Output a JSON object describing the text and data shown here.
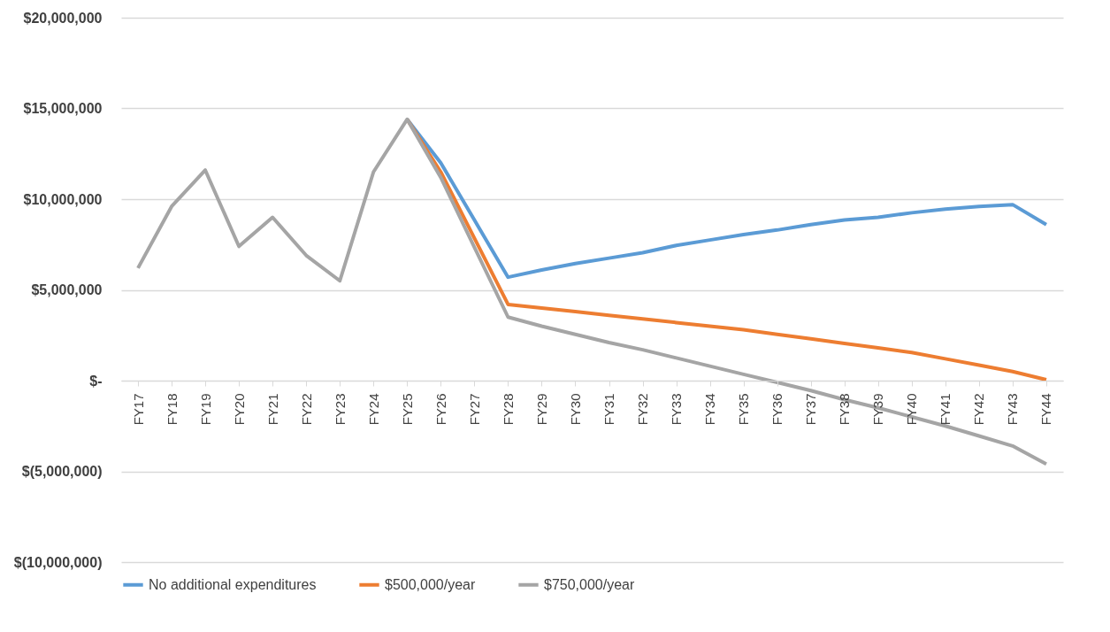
{
  "chart_data": {
    "type": "line",
    "categories": [
      "FY17",
      "FY18",
      "FY19",
      "FY20",
      "FY21",
      "FY22",
      "FY23",
      "FY24",
      "FY25",
      "FY26",
      "FY27",
      "FY28",
      "FY29",
      "FY30",
      "FY31",
      "FY32",
      "FY33",
      "FY34",
      "FY35",
      "FY36",
      "FY37",
      "FY38",
      "FY39",
      "FY40",
      "FY41",
      "FY42",
      "FY43",
      "FY44"
    ],
    "series": [
      {
        "name": "No additional expenditures",
        "color": "#5b9bd5",
        "values": [
          null,
          null,
          null,
          null,
          null,
          null,
          null,
          null,
          14400000,
          12000000,
          8850000,
          5700000,
          6100000,
          6450000,
          6750000,
          7050000,
          7450000,
          7750000,
          8050000,
          8300000,
          8600000,
          8850000,
          9000000,
          9250000,
          9450000,
          9600000,
          9700000,
          8600000
        ]
      },
      {
        "name": "$500,000/year",
        "color": "#ed7d31",
        "values": [
          null,
          null,
          null,
          null,
          null,
          null,
          null,
          null,
          14400000,
          11500000,
          7850000,
          4200000,
          4000000,
          3800000,
          3600000,
          3400000,
          3200000,
          3000000,
          2800000,
          2550000,
          2300000,
          2050000,
          1800000,
          1550000,
          1200000,
          850000,
          500000,
          50000
        ]
      },
      {
        "name": "$750,000/year",
        "color": "#a5a5a5",
        "values": [
          6200000,
          9600000,
          11600000,
          7400000,
          9000000,
          6900000,
          5500000,
          11500000,
          14400000,
          11200000,
          7350000,
          3500000,
          3000000,
          2550000,
          2100000,
          1700000,
          1250000,
          800000,
          350000,
          -100000,
          -550000,
          -1050000,
          -1500000,
          -2000000,
          -2500000,
          -3050000,
          -3600000,
          -4600000
        ]
      }
    ],
    "ylim": [
      -10000000,
      20000000
    ],
    "yticks": [
      {
        "value": -10000000,
        "label": "$(10,000,000)"
      },
      {
        "value": -5000000,
        "label": "$(5,000,000)"
      },
      {
        "value": 0,
        "label": "$-"
      },
      {
        "value": 5000000,
        "label": "$5,000,000"
      },
      {
        "value": 10000000,
        "label": "$10,000,000"
      },
      {
        "value": 15000000,
        "label": "$15,000,000"
      },
      {
        "value": 20000000,
        "label": "$20,000,000"
      }
    ],
    "grid": "y",
    "legend": "bottom",
    "marker": "none",
    "line_style": "solid"
  }
}
